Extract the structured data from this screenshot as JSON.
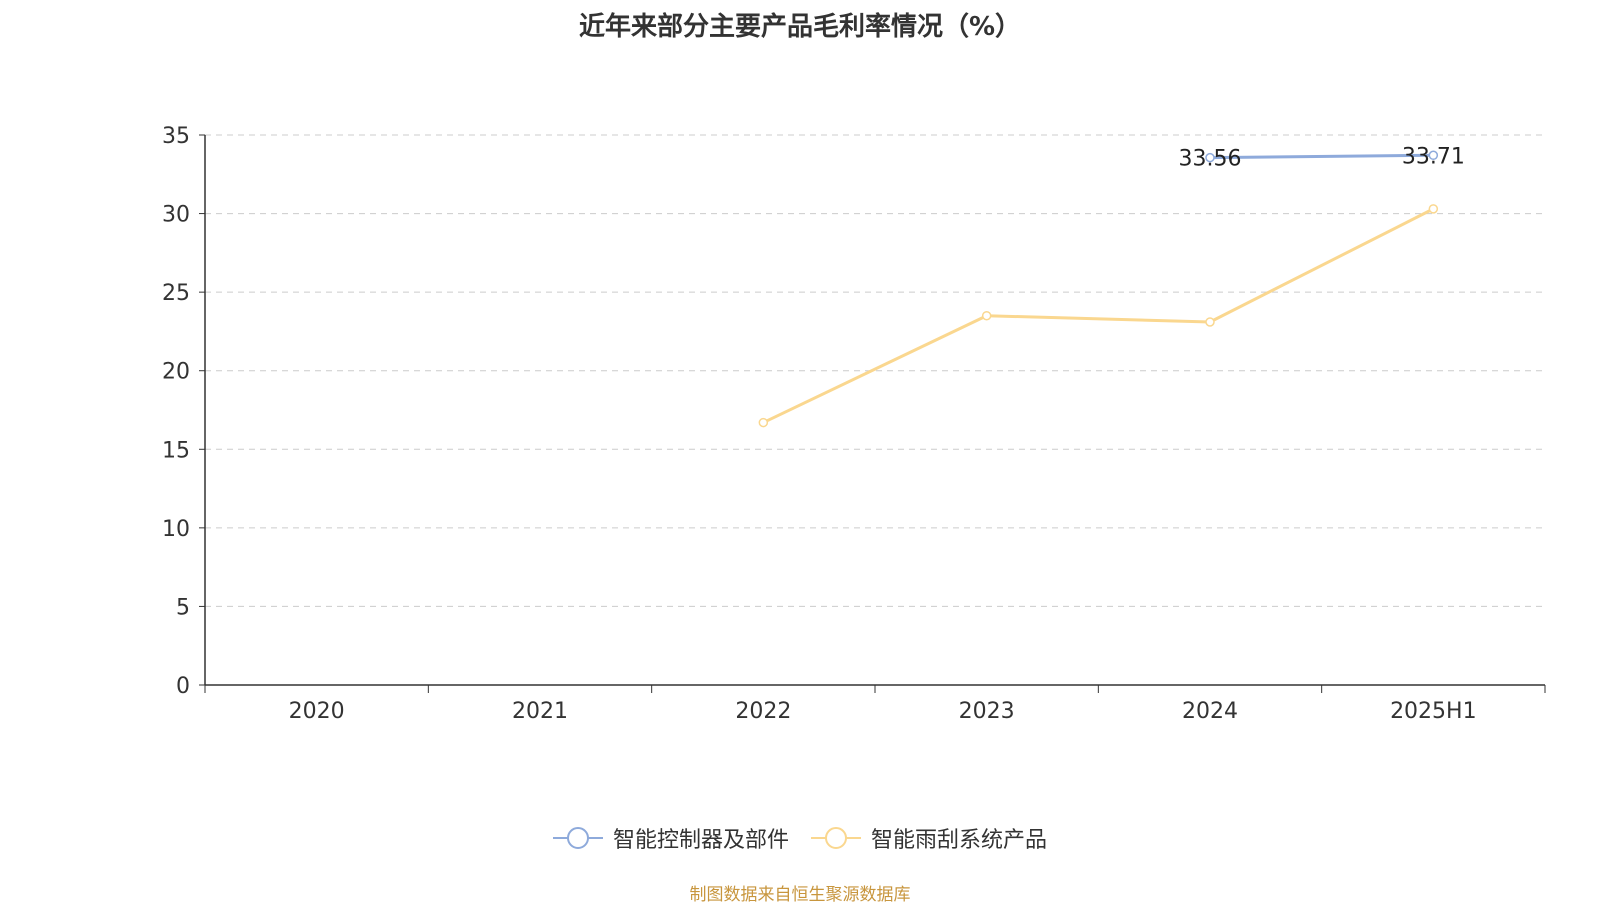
{
  "title": "近年来部分主要产品毛利率情况（%）",
  "source": "制图数据来自恒生聚源数据库",
  "chart_data": {
    "type": "line",
    "title": "近年来部分主要产品毛利率情况（%）",
    "categories": [
      "2020",
      "2021",
      "2022",
      "2023",
      "2024",
      "2025H1"
    ],
    "ylim": [
      0,
      35
    ],
    "yticks": [
      0,
      5,
      10,
      15,
      20,
      25,
      30,
      35
    ],
    "grid": true,
    "legend_position": "bottom",
    "series": [
      {
        "name": "智能控制器及部件",
        "color": "#8eaadb",
        "values": [
          null,
          null,
          null,
          null,
          33.56,
          33.71
        ],
        "labels": [
          null,
          null,
          null,
          null,
          "33.56",
          "33.71"
        ]
      },
      {
        "name": "智能雨刮系统产品",
        "color": "#fad78f",
        "values": [
          null,
          null,
          16.7,
          23.5,
          23.1,
          30.3
        ],
        "labels": [
          null,
          null,
          null,
          null,
          null,
          null
        ]
      }
    ]
  },
  "colors": {
    "axis": "#333333",
    "grid": "#cccccc",
    "source_text": "#c8963e"
  }
}
